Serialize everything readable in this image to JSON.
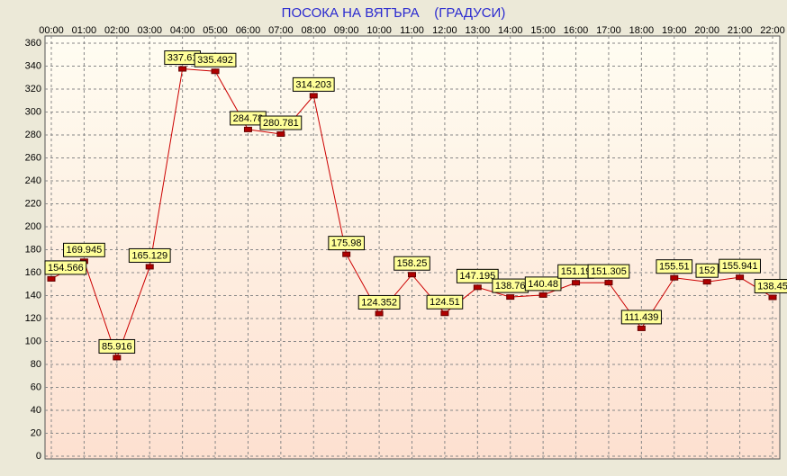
{
  "chart_data": {
    "type": "line",
    "title": "ПОСОКА НА ВЯТЪРА    (ГРАДУСИ)",
    "categories": [
      "00:00",
      "01:00",
      "02:00",
      "03:00",
      "04:00",
      "05:00",
      "06:00",
      "07:00",
      "08:00",
      "09:00",
      "10:00",
      "11:00",
      "12:00",
      "13:00",
      "14:00",
      "15:00",
      "16:00",
      "17:00",
      "18:00",
      "19:00",
      "20:00",
      "21:00",
      "22:00"
    ],
    "values": [
      154.566,
      169.945,
      85.916,
      165.129,
      337.61,
      335.492,
      284.78,
      280.781,
      314.203,
      175.98,
      124.352,
      158.25,
      124.51,
      147.195,
      138.76,
      140.48,
      151.19,
      151.305,
      111.439,
      155.51,
      152,
      155.941,
      138.45
    ],
    "color": "#cc0000",
    "label_color": "#ffff99",
    "ylim": [
      0,
      360
    ],
    "yticks": [
      0,
      20,
      40,
      60,
      80,
      100,
      120,
      140,
      160,
      180,
      200,
      220,
      240,
      260,
      280,
      300,
      320,
      340,
      360
    ],
    "grid": true
  }
}
